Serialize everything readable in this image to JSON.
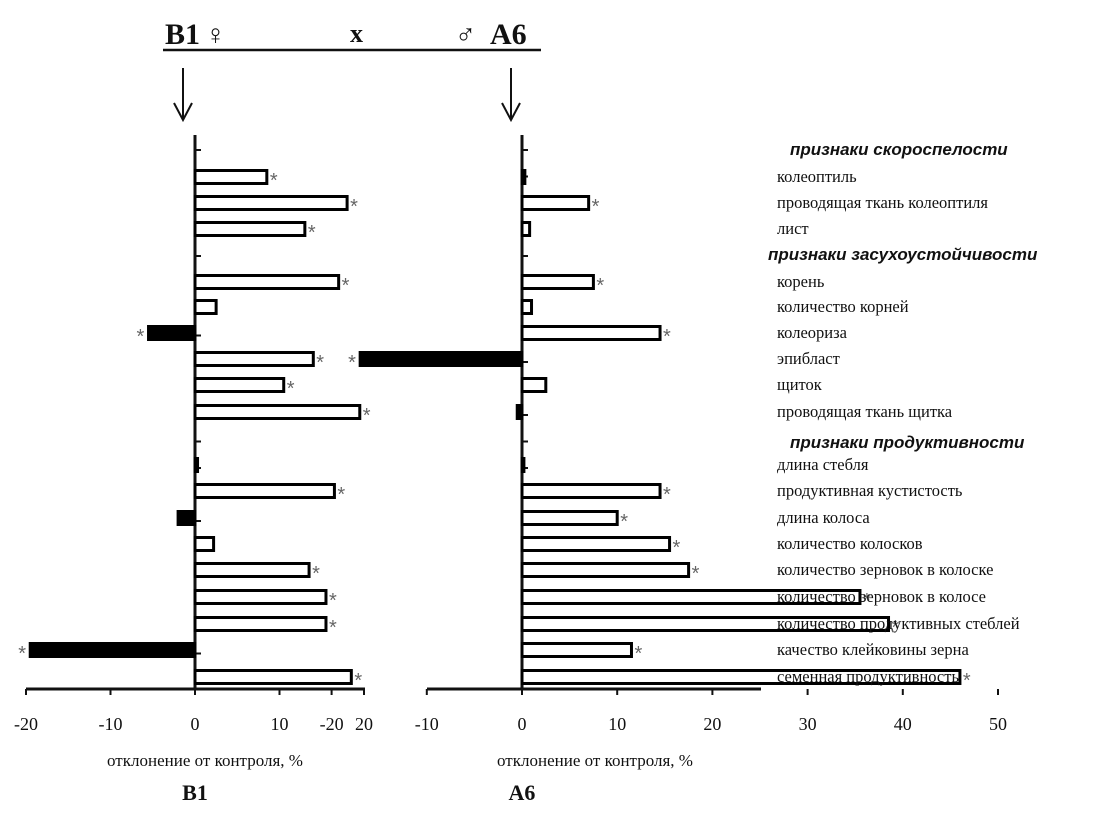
{
  "cross": {
    "female_parent": "B1",
    "female_symbol": "♀",
    "cross_symbol": "x",
    "male_symbol": "♂",
    "male_parent": "A6"
  },
  "groups": [
    {
      "label": "признаки скороспелости"
    },
    {
      "label": "признаки  засухоустойчивости"
    },
    {
      "label": "признаки  продуктивности"
    }
  ],
  "categories": [
    "колеоптиль",
    "проводящая ткань колеоптиля",
    "лист",
    "корень",
    "количество корней",
    "колеориза",
    "эпибласт",
    "щиток",
    "проводящая ткань щитка",
    "длина стебля",
    "продуктивная кустистость",
    "длина колоса",
    "количество колосков",
    "количество зерновок в колоске",
    "количество зерновок в колосе",
    "количество продуктивных стеблей",
    "качество клейковины зерна",
    "семенная продуктивность"
  ],
  "chart_data": [
    {
      "type": "bar",
      "orientation": "horizontal",
      "title": "B1",
      "xlabel": "отклонение от контроля, %",
      "xlim": [
        -20,
        20
      ],
      "xticks": [
        "-20",
        "-10",
        "0",
        "10",
        "20"
      ],
      "categories": [
        "колеоптиль",
        "проводящая ткань колеоптиля",
        "лист",
        "корень",
        "количество корней",
        "колеориза",
        "эпибласт",
        "щиток",
        "проводящая ткань щитка",
        "длина стебля",
        "продуктивная кустистость",
        "длина колоса",
        "количество колосков",
        "количество зерновок в колоске",
        "количество зерновок в колосе",
        "количество продуктивных стеблей",
        "качество клейковины зерна",
        "семенная продуктивность"
      ],
      "values": [
        8.5,
        18.0,
        13.0,
        17.0,
        2.5,
        -5.5,
        14.0,
        10.5,
        19.5,
        0.3,
        16.5,
        -2.0,
        2.2,
        13.5,
        15.5,
        15.5,
        -19.5,
        18.5
      ],
      "significant": [
        true,
        true,
        true,
        true,
        false,
        true,
        true,
        true,
        true,
        false,
        true,
        false,
        false,
        true,
        true,
        true,
        true,
        true
      ],
      "significance_marker": "*"
    },
    {
      "type": "bar",
      "orientation": "horizontal",
      "title": "A6",
      "xlabel": "отклонение от контроля, %",
      "xlim": [
        -20,
        50
      ],
      "xticks": [
        "-20",
        "-10",
        "0",
        "10",
        "20",
        "30",
        "40",
        "50"
      ],
      "categories": [
        "колеоптиль",
        "проводящая ткань колеоптиля",
        "лист",
        "корень",
        "количество корней",
        "колеориза",
        "эпибласт",
        "щиток",
        "проводящая ткань щитка",
        "длина стебля",
        "продуктивная кустистость",
        "длина колоса",
        "количество колосков",
        "количество зерновок в колоске",
        "количество зерновок в колосе",
        "количество продуктивных стеблей",
        "качество клейковины зерна",
        "семенная продуктивность"
      ],
      "values": [
        0.3,
        7.0,
        0.8,
        7.5,
        1.0,
        14.5,
        -17.0,
        2.5,
        -0.5,
        0.2,
        14.5,
        10.0,
        15.5,
        17.5,
        35.5,
        38.5,
        11.5,
        46.0
      ],
      "significant": [
        false,
        true,
        false,
        true,
        false,
        true,
        true,
        false,
        false,
        false,
        true,
        true,
        true,
        true,
        true,
        true,
        true,
        true
      ],
      "significance_marker": "*"
    }
  ]
}
